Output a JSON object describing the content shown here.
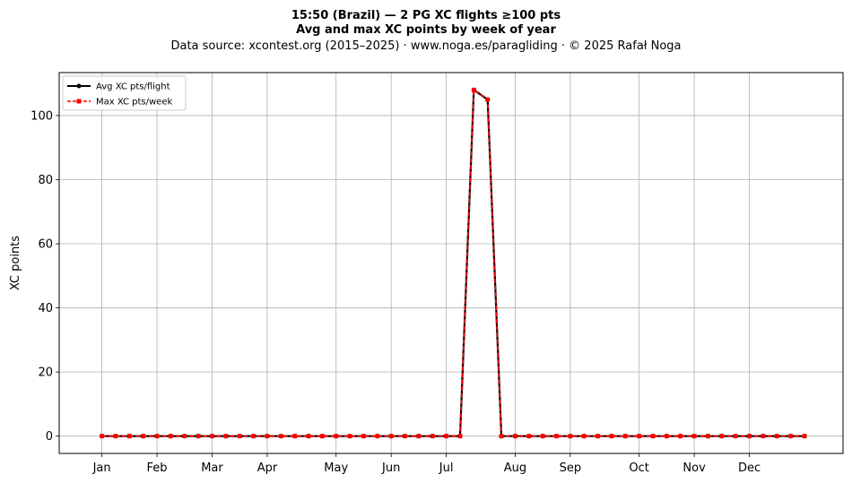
{
  "chart_data": {
    "type": "line",
    "title_lines": [
      "15:50 (Brazil)  —  2 PG XC flights ≥100 pts",
      "Avg and max XC points by week of year"
    ],
    "subtitle": "Data source: xcontest.org (2015–2025)  ·  www.noga.es/paragliding  ·  © 2025 Rafał Noga",
    "xlabel": "",
    "ylabel": "XC points",
    "x_ticks": [
      {
        "label": "Jan",
        "week": 1
      },
      {
        "label": "Feb",
        "week": 5
      },
      {
        "label": "Mar",
        "week": 9
      },
      {
        "label": "Apr",
        "week": 13
      },
      {
        "label": "May",
        "week": 18
      },
      {
        "label": "Jun",
        "week": 22
      },
      {
        "label": "Jul",
        "week": 26
      },
      {
        "label": "Aug",
        "week": 31
      },
      {
        "label": "Sep",
        "week": 35
      },
      {
        "label": "Oct",
        "week": 40
      },
      {
        "label": "Nov",
        "week": 44
      },
      {
        "label": "Dec",
        "week": 48
      }
    ],
    "xlim": [
      -2.1,
      54.8
    ],
    "ylim": [
      -5.4,
      113.4
    ],
    "y_ticks": [
      0,
      20,
      40,
      60,
      80,
      100
    ],
    "grid": true,
    "legend_position": "top-left",
    "x": [
      1,
      2,
      3,
      4,
      5,
      6,
      7,
      8,
      9,
      10,
      11,
      12,
      13,
      14,
      15,
      16,
      17,
      18,
      19,
      20,
      21,
      22,
      23,
      24,
      25,
      26,
      27,
      28,
      29,
      30,
      31,
      32,
      33,
      34,
      35,
      36,
      37,
      38,
      39,
      40,
      41,
      42,
      43,
      44,
      45,
      46,
      47,
      48,
      49,
      50,
      51,
      52
    ],
    "series": [
      {
        "name": "Avg XC pts/flight",
        "color": "#000000",
        "style": "solid",
        "marker": "circle",
        "values": [
          0,
          0,
          0,
          0,
          0,
          0,
          0,
          0,
          0,
          0,
          0,
          0,
          0,
          0,
          0,
          0,
          0,
          0,
          0,
          0,
          0,
          0,
          0,
          0,
          0,
          0,
          0,
          108,
          105,
          0,
          0,
          0,
          0,
          0,
          0,
          0,
          0,
          0,
          0,
          0,
          0,
          0,
          0,
          0,
          0,
          0,
          0,
          0,
          0,
          0,
          0,
          0
        ]
      },
      {
        "name": "Max XC pts/week",
        "color": "#ff0000",
        "style": "dashed",
        "marker": "square",
        "values": [
          0,
          0,
          0,
          0,
          0,
          0,
          0,
          0,
          0,
          0,
          0,
          0,
          0,
          0,
          0,
          0,
          0,
          0,
          0,
          0,
          0,
          0,
          0,
          0,
          0,
          0,
          0,
          108,
          105,
          0,
          0,
          0,
          0,
          0,
          0,
          0,
          0,
          0,
          0,
          0,
          0,
          0,
          0,
          0,
          0,
          0,
          0,
          0,
          0,
          0,
          0,
          0
        ]
      }
    ]
  }
}
